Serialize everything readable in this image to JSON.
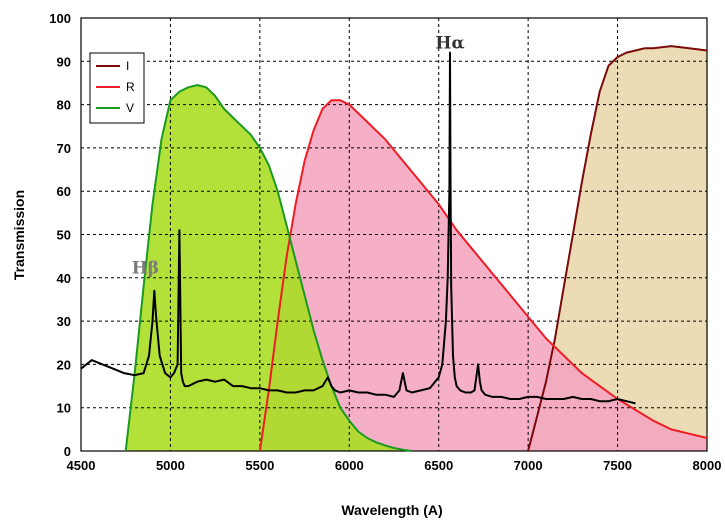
{
  "chart_data": {
    "type": "area",
    "title": "",
    "xlabel": "Wavelength (A)",
    "ylabel": "Transmission",
    "xlim": [
      4500,
      8000
    ],
    "ylim": [
      0,
      100
    ],
    "xticks": [
      4500,
      5000,
      5500,
      6000,
      6500,
      7000,
      7500,
      8000
    ],
    "yticks": [
      0,
      10,
      20,
      30,
      40,
      50,
      60,
      70,
      80,
      90,
      100
    ],
    "grid": true,
    "legend_position": "top-left",
    "annotations": [
      {
        "text": "Hβ",
        "x": 4860,
        "y": 41
      },
      {
        "text": "Hα",
        "x": 6563,
        "y": 93
      }
    ],
    "series": [
      {
        "name": "I",
        "color": "#7a0a0a",
        "fill": "#e9d7ab",
        "x": [
          7000,
          7050,
          7100,
          7150,
          7200,
          7250,
          7300,
          7350,
          7400,
          7450,
          7500,
          7550,
          7600,
          7650,
          7700,
          7800,
          7900,
          8000
        ],
        "y": [
          0,
          8,
          16,
          26,
          38,
          50,
          62,
          73,
          83,
          89,
          91,
          92,
          92.5,
          93,
          93,
          93.5,
          93,
          92.5
        ]
      },
      {
        "name": "R",
        "color": "#ee1c24",
        "fill": "#f4a5c0",
        "x": [
          5500,
          5550,
          5600,
          5650,
          5700,
          5750,
          5800,
          5850,
          5900,
          5950,
          6000,
          6100,
          6200,
          6300,
          6400,
          6500,
          6600,
          6700,
          6800,
          6900,
          7000,
          7100,
          7200,
          7300,
          7400,
          7500,
          7600,
          7700,
          7800,
          7900,
          8000
        ],
        "y": [
          0,
          14,
          30,
          45,
          57,
          67,
          74,
          79,
          81,
          81,
          80,
          76,
          72,
          67,
          62,
          57,
          51,
          46,
          41,
          36,
          31,
          26,
          22,
          18,
          15,
          12,
          9.5,
          7,
          5,
          4,
          3
        ]
      },
      {
        "name": "V",
        "color": "#1a9a20",
        "fill": "#a8dd1e",
        "x": [
          4750,
          4800,
          4850,
          4900,
          4950,
          5000,
          5050,
          5100,
          5150,
          5200,
          5250,
          5300,
          5350,
          5400,
          5450,
          5500,
          5550,
          5600,
          5650,
          5700,
          5750,
          5800,
          5850,
          5900,
          5950,
          6000,
          6050,
          6100,
          6150,
          6200,
          6250,
          6300,
          6350
        ],
        "y": [
          0,
          18,
          38,
          57,
          72,
          81,
          83,
          84,
          84.5,
          84,
          82,
          79,
          77,
          75,
          73,
          70,
          66,
          60,
          52,
          44,
          36,
          28,
          21,
          15,
          10,
          7,
          4.5,
          3,
          2,
          1.3,
          0.7,
          0.3,
          0
        ]
      },
      {
        "name": "",
        "color": "#000000",
        "x": [
          4500,
          4560,
          4620,
          4680,
          4740,
          4800,
          4850,
          4880,
          4900,
          4910,
          4920,
          4940,
          4970,
          5000,
          5020,
          5040,
          5050,
          5060,
          5070,
          5080,
          5100,
          5150,
          5200,
          5250,
          5300,
          5350,
          5400,
          5450,
          5500,
          5550,
          5600,
          5650,
          5700,
          5750,
          5800,
          5850,
          5880,
          5900,
          5920,
          5950,
          6000,
          6050,
          6100,
          6150,
          6200,
          6250,
          6280,
          6300,
          6320,
          6350,
          6400,
          6450,
          6500,
          6520,
          6540,
          6550,
          6560,
          6563,
          6566,
          6570,
          6580,
          6590,
          6600,
          6620,
          6650,
          6680,
          6700,
          6710,
          6720,
          6730,
          6740,
          6760,
          6800,
          6850,
          6900,
          6950,
          7000,
          7050,
          7100,
          7150,
          7200,
          7250,
          7300,
          7350,
          7400,
          7450,
          7500,
          7550,
          7600
        ],
        "y": [
          19,
          21,
          20,
          19,
          18,
          17.5,
          18,
          22,
          30,
          37,
          31,
          22,
          18,
          17,
          18,
          20,
          51,
          18,
          16,
          15,
          15,
          16,
          16.5,
          16,
          16.5,
          15,
          15,
          14.5,
          14.5,
          14,
          14,
          13.5,
          13.5,
          14,
          14,
          15,
          17,
          15,
          14,
          13.5,
          14,
          13.5,
          13.5,
          13,
          13,
          12.5,
          14,
          18,
          14,
          13.5,
          14,
          14.5,
          17,
          20,
          30,
          40,
          60,
          92,
          63,
          38,
          22,
          17,
          15,
          14,
          13.5,
          13.5,
          14,
          17,
          20,
          16,
          14,
          13,
          12.5,
          12.5,
          12,
          12,
          12.5,
          12.5,
          12,
          12,
          12,
          12.5,
          12,
          12,
          11.5,
          11.5,
          12,
          11.5,
          11
        ]
      }
    ]
  }
}
